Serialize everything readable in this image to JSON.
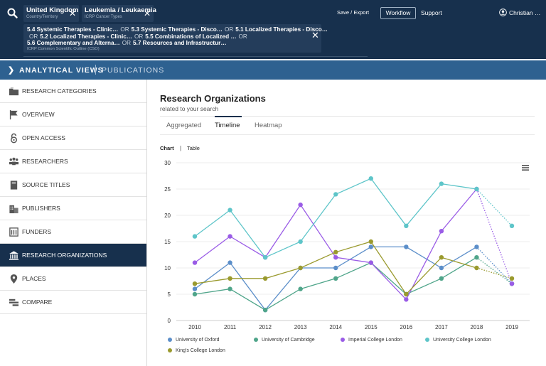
{
  "header": {
    "chips": [
      {
        "value": "United Kingdom",
        "type": "Country/Territory"
      },
      {
        "value": "Leukemia / Leukaemia",
        "type": "ICRP Cancer Types"
      }
    ],
    "cso": {
      "lines": [
        [
          "5.4 Systemic Therapies - Clinic…",
          "OR",
          "5.3 Systemic Therapies - Disco…",
          "OR",
          "5.1 Localized Therapies - Disco…"
        ],
        [
          "OR",
          "5.2 Localized Therapies - Clinic…",
          "OR",
          "5.5 Combinations of Localized …",
          "OR"
        ],
        [
          "5.6 Complementary and Alterna…",
          "OR",
          "5.7 Resources and Infrastructur…"
        ]
      ],
      "type": "ICRP Common Scientific Outline (CSO)"
    },
    "save_export": "Save / Export",
    "workflow": "Workflow",
    "support": "Support",
    "user": "Christian …"
  },
  "views_bar": {
    "title": "ANALYTICAL VIEWS",
    "section": "PUBLICATIONS"
  },
  "sidebar": {
    "items": [
      {
        "label": "RESEARCH CATEGORIES",
        "icon": "folder-icon"
      },
      {
        "label": "OVERVIEW",
        "icon": "flag-icon"
      },
      {
        "label": "OPEN ACCESS",
        "icon": "lock-open-icon"
      },
      {
        "label": "RESEARCHERS",
        "icon": "people-icon"
      },
      {
        "label": "SOURCE TITLES",
        "icon": "book-icon"
      },
      {
        "label": "PUBLISHERS",
        "icon": "buildings-icon"
      },
      {
        "label": "FUNDERS",
        "icon": "bank-icon"
      },
      {
        "label": "RESEARCH ORGANIZATIONS",
        "icon": "institution-icon"
      },
      {
        "label": "PLACES",
        "icon": "map-pin-icon"
      },
      {
        "label": "COMPARE",
        "icon": "compare-icon"
      }
    ],
    "active_index": 7
  },
  "main": {
    "title": "Research Organizations",
    "subtitle": "related to your search",
    "tabs": [
      "Aggregated",
      "Timeline",
      "Heatmap"
    ],
    "active_tab": "Timeline",
    "view_toggle": {
      "chart": "Chart",
      "sep": "|",
      "table": "Table"
    }
  },
  "chart_data": {
    "type": "line",
    "x": [
      2010,
      2011,
      2012,
      2013,
      2014,
      2015,
      2016,
      2017,
      2018,
      2019
    ],
    "ylim": [
      0,
      30
    ],
    "yticks": [
      0,
      5,
      10,
      15,
      20,
      25,
      30
    ],
    "projected_last_point": true,
    "series": [
      {
        "name": "University of Oxford",
        "color": "#5b8ec9",
        "values": [
          6,
          11,
          2,
          10,
          10,
          14,
          14,
          10,
          14,
          7
        ]
      },
      {
        "name": "University of Cambridge",
        "color": "#4fa58a",
        "values": [
          5,
          6,
          2,
          6,
          8,
          11,
          5,
          8,
          12,
          7
        ]
      },
      {
        "name": "Imperial College London",
        "color": "#9a5ce6",
        "values": [
          11,
          16,
          12,
          22,
          12,
          11,
          4,
          17,
          25,
          7
        ]
      },
      {
        "name": "University College London",
        "color": "#5ec5c9",
        "values": [
          16,
          21,
          12,
          15,
          24,
          27,
          18,
          26,
          25,
          18
        ]
      },
      {
        "name": "King's College London",
        "color": "#9a9a2e",
        "values": [
          7,
          8,
          8,
          10,
          13,
          15,
          5,
          12,
          10,
          8
        ]
      }
    ]
  }
}
